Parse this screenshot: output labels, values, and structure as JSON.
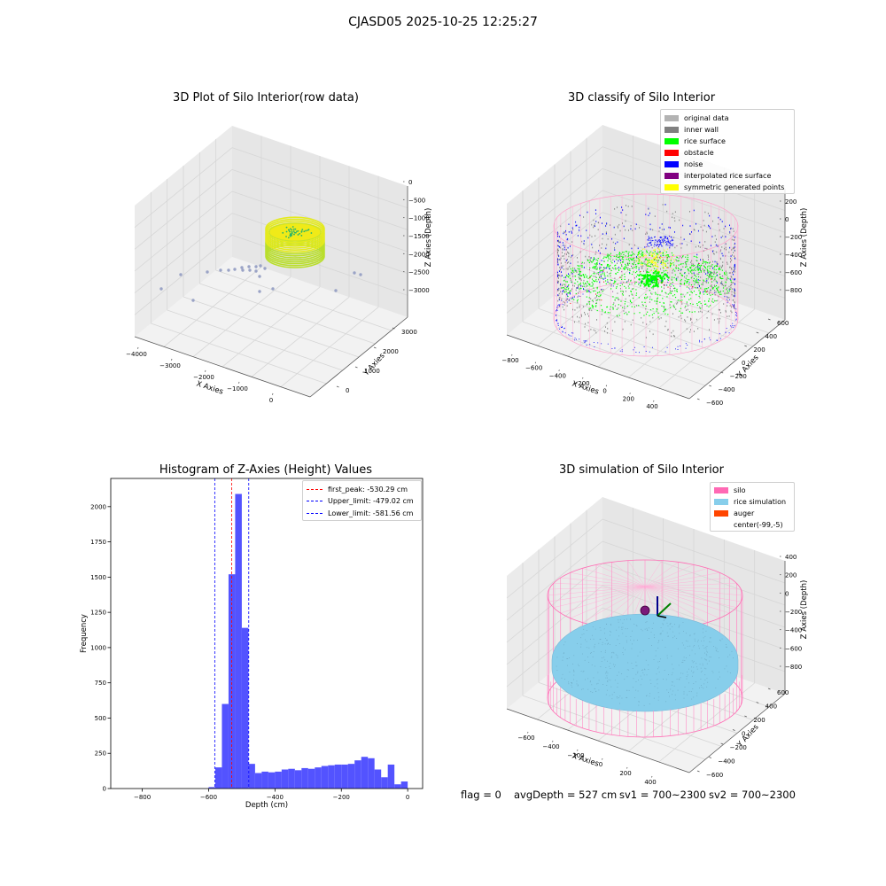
{
  "figure": {
    "suptitle": "CJASD05 2025-10-25 12:25:27",
    "footer": {
      "flag": "flag = 0",
      "avg_depth": "avgDepth = 527 cm",
      "sv1": "sv1 = 700~2300",
      "sv2": "sv2 = 700~2300"
    }
  },
  "colors": {
    "raw_surface": "#d9e52a",
    "raw_points": "#9aa3c6",
    "original": "#b3b3b3",
    "inner_wall": "#808080",
    "rice_surface": "#00ff00",
    "obstacle": "#ff0000",
    "noise": "#0000ff",
    "interpolated": "#800080",
    "symmetric": "#ffff00",
    "silo": "#ff69b4",
    "rice_sim": "#87ceeb",
    "auger": "#ff4500",
    "histogram_bar": "#4a4aff",
    "first_peak_line": "#ff0000",
    "limit_line": "#0000ff"
  },
  "chart_data": [
    {
      "type": "scatter",
      "projection": "3d",
      "title": "3D Plot of Silo Interior(row data)",
      "xlabel": "X Axies",
      "ylabel": "Y Axies",
      "zlabel": "Z Axies (Depth)",
      "xticks": [
        "−4000",
        "−3000",
        "−2000",
        "−1000",
        "0"
      ],
      "yticks": [
        "0",
        "1000",
        "2000",
        "3000"
      ],
      "zticks": [
        "0",
        "−500",
        "−1000",
        "−1500",
        "−2000",
        "−2500",
        "−3000"
      ],
      "grid": true
    },
    {
      "type": "scatter",
      "projection": "3d",
      "title": "3D classify of Silo Interior",
      "xlabel": "X Axies",
      "ylabel": "Y Axies",
      "zlabel": "Z Axies (Depth)",
      "xticks": [
        "−800",
        "−600",
        "−400",
        "−200",
        "0",
        "200",
        "400"
      ],
      "yticks": [
        "−600",
        "−400",
        "−200",
        "0",
        "200",
        "400",
        "600"
      ],
      "zticks": [
        "200",
        "0",
        "−200",
        "−400",
        "−600",
        "−800"
      ],
      "legend": {
        "placement": "top-right",
        "entries": [
          {
            "label": "original data",
            "color": "#b3b3b3"
          },
          {
            "label": "inner wall",
            "color": "#808080"
          },
          {
            "label": "rice surface",
            "color": "#00ff00"
          },
          {
            "label": "obstacle",
            "color": "#ff0000"
          },
          {
            "label": "noise",
            "color": "#0000ff"
          },
          {
            "label": "interpolated rice surface",
            "color": "#800080"
          },
          {
            "label": "symmetric generated points",
            "color": "#ffff00"
          }
        ]
      },
      "grid": true
    },
    {
      "type": "bar",
      "title": "Histogram of Z-Axies (Height) Values",
      "xlabel": "Depth (cm)",
      "ylabel": "Frequency",
      "xlim": [
        -895,
        45
      ],
      "ylim": [
        0,
        2200
      ],
      "xticks": [
        -800,
        -600,
        -400,
        -200,
        0
      ],
      "xtick_labels": [
        "−800",
        "−600",
        "−400",
        "−200",
        "0"
      ],
      "yticks": [
        0,
        250,
        500,
        750,
        1000,
        1250,
        1500,
        1750,
        2000
      ],
      "bin_width": 20,
      "bins": [
        [
          -600,
          10
        ],
        [
          -580,
          150
        ],
        [
          -560,
          600
        ],
        [
          -540,
          1520
        ],
        [
          -520,
          2090
        ],
        [
          -500,
          1140
        ],
        [
          -480,
          175
        ],
        [
          -460,
          110
        ],
        [
          -440,
          120
        ],
        [
          -420,
          115
        ],
        [
          -400,
          120
        ],
        [
          -380,
          135
        ],
        [
          -360,
          140
        ],
        [
          -340,
          130
        ],
        [
          -320,
          145
        ],
        [
          -300,
          140
        ],
        [
          -280,
          150
        ],
        [
          -260,
          160
        ],
        [
          -240,
          165
        ],
        [
          -220,
          170
        ],
        [
          -200,
          170
        ],
        [
          -180,
          175
        ],
        [
          -160,
          200
        ],
        [
          -140,
          225
        ],
        [
          -120,
          215
        ],
        [
          -100,
          135
        ],
        [
          -80,
          80
        ],
        [
          -60,
          170
        ],
        [
          -40,
          30
        ],
        [
          -20,
          50
        ]
      ],
      "lines": [
        {
          "label": "first_peak: -530.29 cm",
          "x": -530.29,
          "color": "#ff0000"
        },
        {
          "label": "Upper_limit: -479.02 cm",
          "x": -479.02,
          "color": "#0000ff"
        },
        {
          "label": "Lower_limit: -581.56 cm",
          "x": -581.56,
          "color": "#0000ff"
        }
      ],
      "legend": {
        "placement": "top-right"
      },
      "grid": false
    },
    {
      "type": "scatter",
      "projection": "3d",
      "title": "3D simulation of Silo Interior",
      "xlabel": "X Axies",
      "ylabel": "Y Axies",
      "zlabel": "Z Axies (Depth)",
      "xticks": [
        "−600",
        "−400",
        "−200",
        "0",
        "200",
        "400"
      ],
      "yticks": [
        "−600",
        "−400",
        "−200",
        "0",
        "200",
        "400",
        "600"
      ],
      "zticks": [
        "400",
        "200",
        "0",
        "−200",
        "−400",
        "−600",
        "−800"
      ],
      "legend": {
        "placement": "top-right",
        "entries": [
          {
            "label": "silo",
            "color": "#ff69b4"
          },
          {
            "label": "rice simulation",
            "color": "#87ceeb"
          },
          {
            "label": "auger",
            "color": "#ff4500"
          },
          {
            "label": "center(-99,-5)",
            "color": ""
          }
        ]
      },
      "grid": true
    }
  ]
}
